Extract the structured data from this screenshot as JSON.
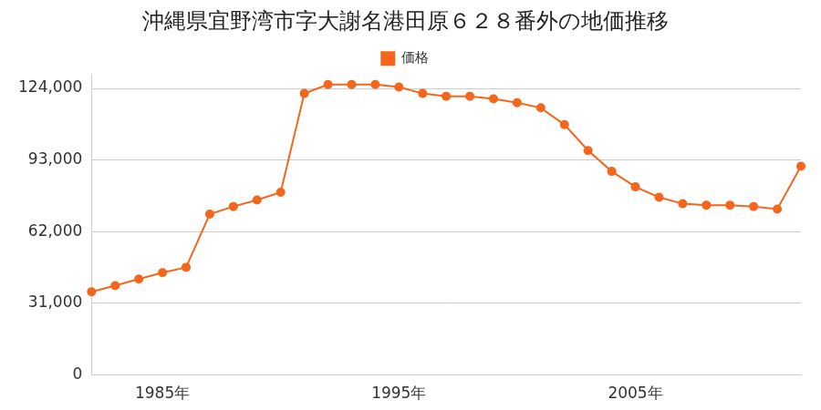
{
  "chart_data": {
    "type": "line",
    "title": "沖縄県宜野湾市字大謝名港田原６２８番外の地価推移",
    "categories": [
      null,
      null,
      null,
      "1985年",
      null,
      null,
      null,
      null,
      null,
      null,
      null,
      null,
      null,
      "1995年",
      null,
      null,
      null,
      null,
      null,
      null,
      null,
      null,
      null,
      "2005年",
      null,
      null,
      null,
      null,
      null,
      null,
      null
    ],
    "series": [
      {
        "name": "価格",
        "color": "#f4661b",
        "marker": "circle",
        "values": [
          36000,
          38700,
          41500,
          44300,
          46600,
          69600,
          72900,
          75700,
          79100,
          121800,
          125700,
          125700,
          125700,
          124600,
          121800,
          120600,
          120600,
          119500,
          117800,
          115600,
          108300,
          97100,
          88100,
          81400,
          76900,
          74100,
          73500,
          73500,
          72900,
          71800,
          90300
        ]
      }
    ],
    "ylim": [
      0,
      130000
    ],
    "yticks": [
      0,
      {
        "value": 31000,
        "label": "31,000"
      },
      {
        "value": 62000,
        "label": "62,000"
      },
      {
        "value": 93000,
        "label": "93,000"
      },
      {
        "value": 124000,
        "label": "124,000"
      }
    ],
    "grid": true,
    "legend": "top"
  }
}
